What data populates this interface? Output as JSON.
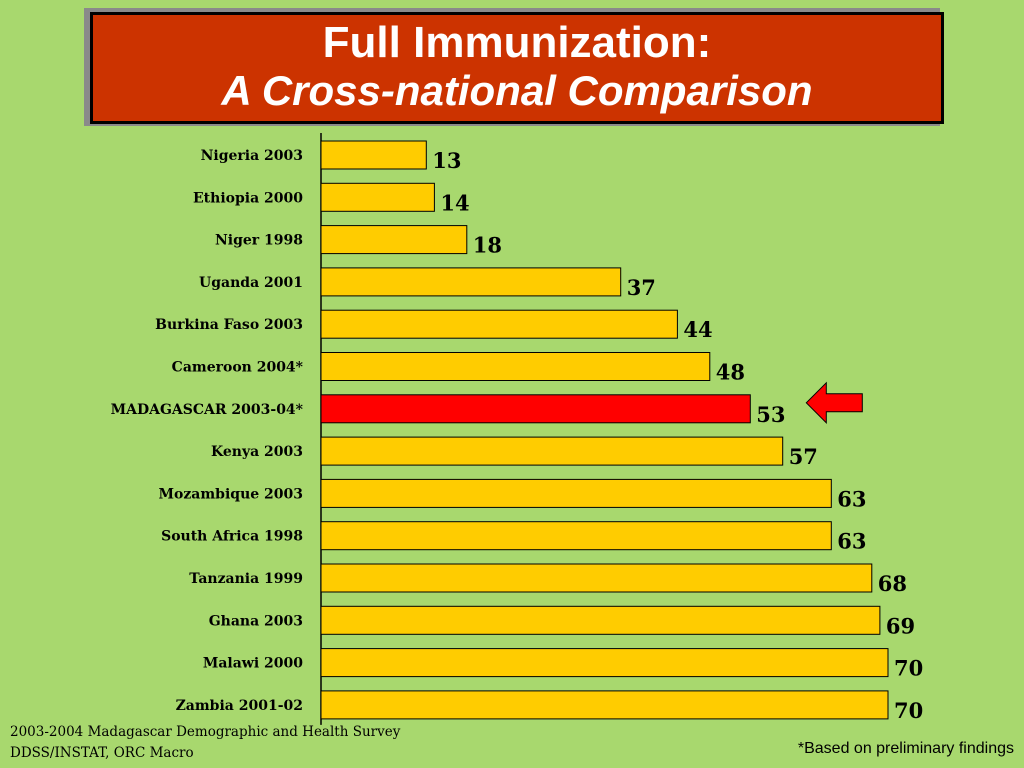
{
  "title": {
    "line1": "Full Immunization:",
    "line2": "A Cross-national Comparison"
  },
  "chart_data": {
    "type": "bar",
    "orientation": "horizontal",
    "categories": [
      "Nigeria 2003",
      "Ethiopia 2000",
      "Niger 1998",
      "Uganda 2001",
      "Burkina Faso 2003",
      "Cameroon 2004*",
      "MADAGASCAR 2003-04*",
      "Kenya 2003",
      "Mozambique 2003",
      "South Africa 1998",
      "Tanzania 1999",
      "Ghana 2003",
      "Malawi 2000",
      "Zambia 2001-02"
    ],
    "values": [
      13,
      14,
      18,
      37,
      44,
      48,
      53,
      57,
      63,
      63,
      68,
      69,
      70,
      70
    ],
    "data_labels": [
      "13",
      "14",
      "18",
      "37",
      "44",
      "48",
      "53",
      "57",
      "63",
      "63",
      "68",
      "69",
      "70",
      "70"
    ],
    "highlight_index": 6,
    "colors": {
      "bar": "#ffcc00",
      "highlight": "#ff0000",
      "arrow": "#ff0000"
    },
    "xlim": [
      0,
      100
    ],
    "grid": false,
    "title": "",
    "xlabel": "",
    "ylabel": ""
  },
  "footer": {
    "source_line1": "2003-2004 Madagascar Demographic and Health Survey",
    "source_line2": "DDSS/INSTAT, ORC Macro",
    "footnote": "*Based on preliminary findings"
  },
  "colors": {
    "background": "#a8d86e",
    "title_bg": "#cc3300"
  }
}
